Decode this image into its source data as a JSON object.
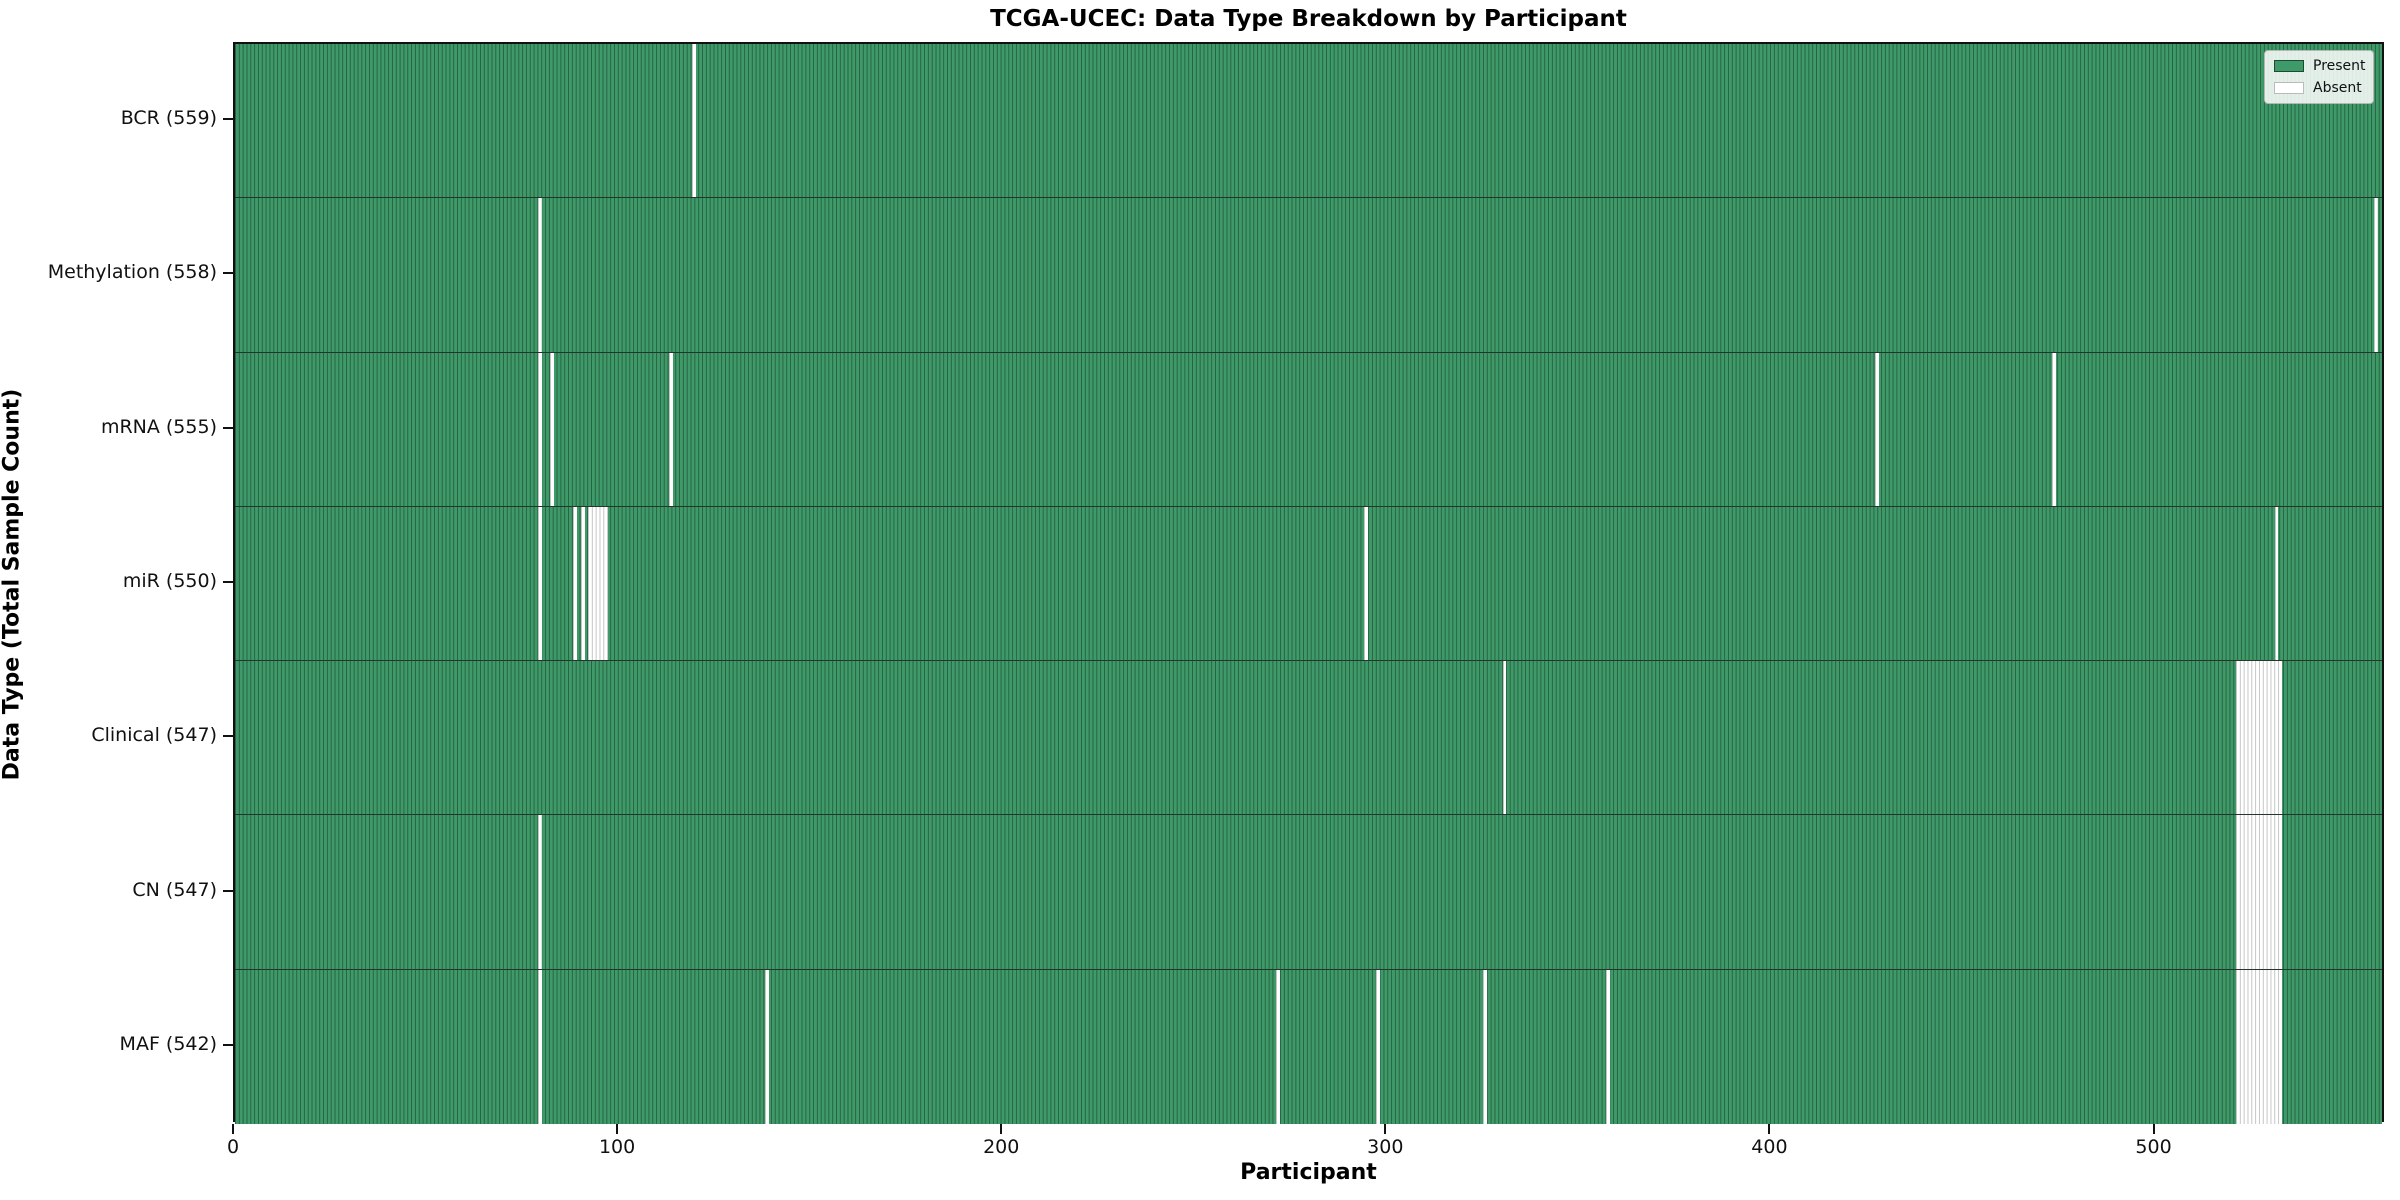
{
  "chart_data": {
    "type": "heatmap",
    "title": "TCGA-UCEC: Data Type Breakdown by Participant",
    "xlabel": "Participant",
    "ylabel": "Data Type (Total Sample Count)",
    "n_participants": 560,
    "x_ticks": [
      0,
      100,
      200,
      300,
      400,
      500
    ],
    "legend": [
      {
        "label": "Present",
        "color": "#3e9a68"
      },
      {
        "label": "Absent",
        "color": "#ffffff"
      }
    ],
    "colors": {
      "present_fill": "#3e9a68",
      "present_edge": "#28624300",
      "bar_edge": "#286243",
      "absent_fill": "#ffffff",
      "absent_edge": "#c4c4c4",
      "row_separator": "#24362b",
      "spine": "#111111"
    },
    "rows": [
      {
        "label": "BCR (559)",
        "data_type": "BCR",
        "total": 559,
        "absent_ranges": [
          [
            119,
            1
          ]
        ]
      },
      {
        "label": "Methylation (558)",
        "data_type": "Methylation",
        "total": 558,
        "absent_ranges": [
          [
            79,
            1
          ],
          [
            557,
            1
          ]
        ]
      },
      {
        "label": "mRNA (555)",
        "data_type": "mRNA",
        "total": 555,
        "absent_ranges": [
          [
            79,
            1
          ],
          [
            82,
            1
          ],
          [
            113,
            1
          ],
          [
            427,
            1
          ],
          [
            473,
            1
          ]
        ]
      },
      {
        "label": "miR (550)",
        "data_type": "miR",
        "total": 550,
        "absent_ranges": [
          [
            79,
            1
          ],
          [
            88,
            1
          ],
          [
            90,
            1
          ],
          [
            92,
            5
          ],
          [
            294,
            1
          ],
          [
            531,
            1
          ]
        ]
      },
      {
        "label": "Clinical (547)",
        "data_type": "Clinical",
        "total": 547,
        "absent_ranges": [
          [
            330,
            1
          ],
          [
            521,
            12
          ]
        ]
      },
      {
        "label": "CN (547)",
        "data_type": "CN",
        "total": 547,
        "absent_ranges": [
          [
            79,
            1
          ],
          [
            521,
            12
          ]
        ]
      },
      {
        "label": "MAF (542)",
        "data_type": "MAF",
        "total": 542,
        "absent_ranges": [
          [
            79,
            1
          ],
          [
            138,
            1
          ],
          [
            271,
            1
          ],
          [
            297,
            1
          ],
          [
            325,
            1
          ],
          [
            357,
            1
          ],
          [
            521,
            12
          ]
        ]
      }
    ]
  }
}
